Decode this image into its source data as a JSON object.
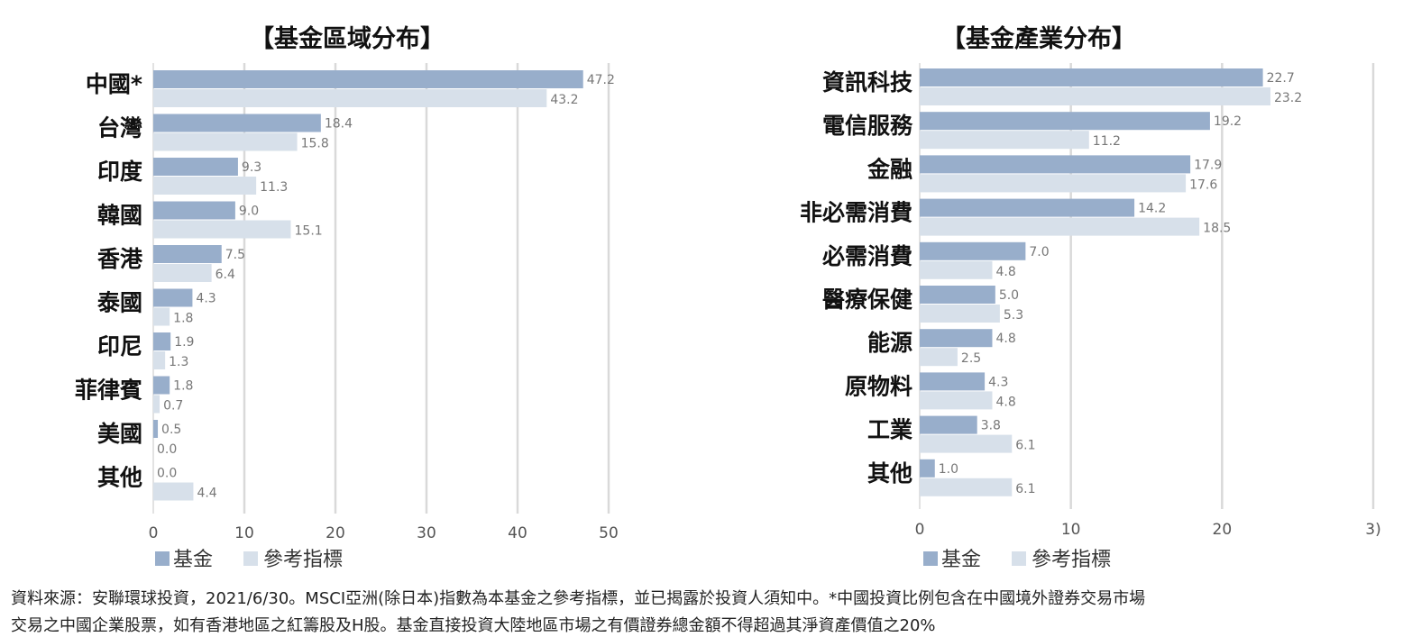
{
  "chart_data": [
    {
      "type": "bar",
      "orientation": "horizontal",
      "title": "【基金區域分布】",
      "categories": [
        "中國*",
        "台灣",
        "印度",
        "韓國",
        "香港",
        "泰國",
        "印尼",
        "菲律賓",
        "美國",
        "其他"
      ],
      "series": [
        {
          "name": "基金",
          "values": [
            47.2,
            18.4,
            9.3,
            9.0,
            7.5,
            4.3,
            1.9,
            1.8,
            0.5,
            0.0
          ],
          "labels": [
            "47.2",
            "18.4",
            "9.3",
            "9.0",
            "7.5",
            "4.3",
            "1.9",
            "1.8",
            "0.5",
            "0.0"
          ]
        },
        {
          "name": "參考指標",
          "values": [
            43.2,
            15.8,
            11.3,
            15.1,
            6.4,
            1.8,
            1.3,
            0.7,
            0.0,
            4.4
          ],
          "labels": [
            "43.2",
            "15.8",
            "11.3",
            "15.1",
            "6.4",
            "1.8",
            "1.3",
            "0.7",
            "0.0",
            "4.4"
          ]
        }
      ],
      "xlim": [
        0,
        50
      ],
      "xticks": [
        "0",
        "10",
        "20",
        "30",
        "40",
        "50"
      ],
      "grid": true,
      "legend_position": "bottom-left"
    },
    {
      "type": "bar",
      "orientation": "horizontal",
      "title": "【基金產業分布】",
      "categories": [
        "資訊科技",
        "電信服務",
        "金融",
        "非必需消費",
        "必需消費",
        "醫療保健",
        "能源",
        "原物料",
        "工業",
        "其他"
      ],
      "series": [
        {
          "name": "基金",
          "values": [
            22.7,
            19.2,
            17.9,
            14.2,
            7.0,
            5.0,
            4.8,
            4.3,
            3.8,
            1.0
          ],
          "labels": [
            "22.7",
            "19.2",
            "17.9",
            "14.2",
            "7.0",
            "5.0",
            "4.8",
            "4.3",
            "3.8",
            "1.0"
          ]
        },
        {
          "name": "參考指標",
          "values": [
            23.2,
            11.2,
            17.6,
            18.5,
            4.8,
            5.3,
            2.5,
            4.8,
            6.1,
            6.1
          ],
          "labels": [
            "23.2",
            "11.2",
            "17.6",
            "18.5",
            "4.8",
            "5.3",
            "2.5",
            "4.8",
            "6.1",
            "6.1"
          ]
        }
      ],
      "xlim": [
        0,
        30
      ],
      "xticks": [
        "0",
        "10",
        "20",
        "3)"
      ],
      "grid": true,
      "legend_position": "bottom-left"
    }
  ],
  "colors": {
    "fund": "#98aecb",
    "benchmark": "#d7e0ea",
    "grid": "#d9d9d9"
  },
  "footnote": {
    "line1": "資料來源：安聯環球投資，2021/6/30。MSCI亞洲(除日本)指數為本基金之參考指標，並已揭露於投資人須知中。*中國投資比例包含在中國境外證券交易市場",
    "line2": "交易之中國企業股票，如有香港地區之紅籌股及H股。基金直接投資大陸地區市場之有價證券總金額不得超過其淨資產價值之20%"
  }
}
